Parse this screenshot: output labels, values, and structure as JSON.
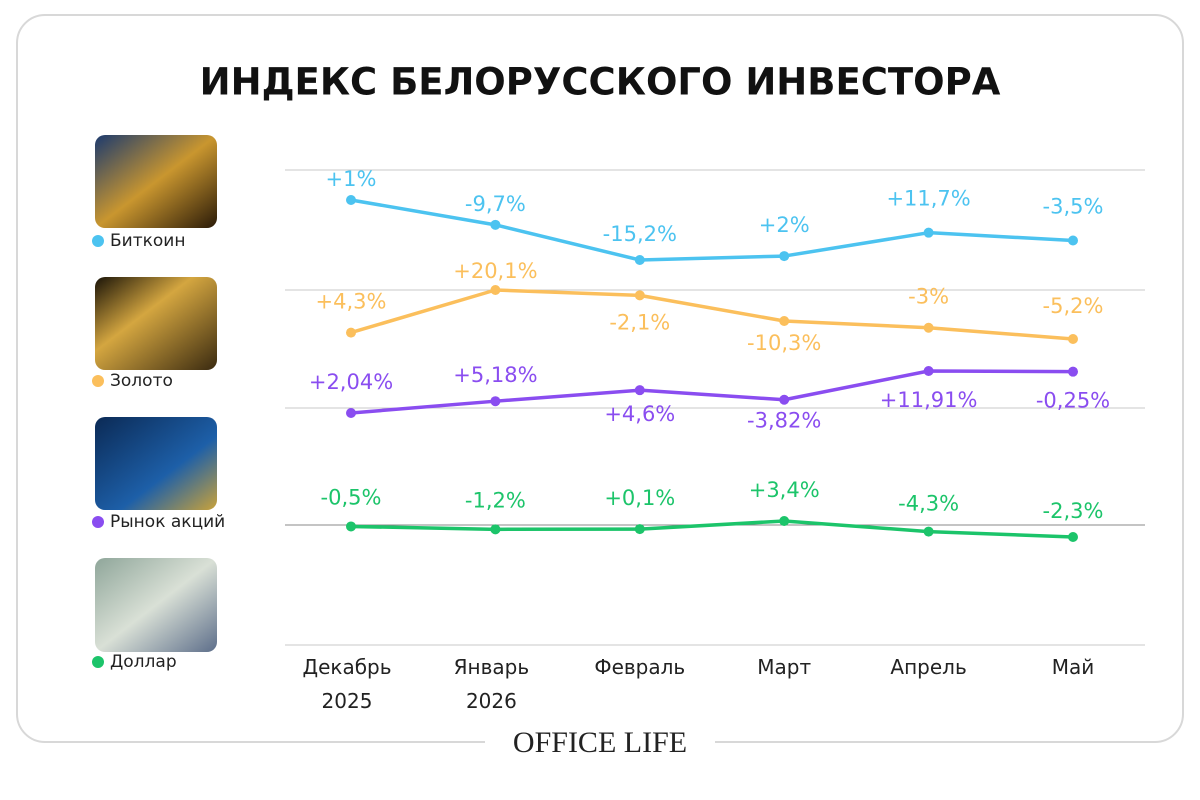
{
  "chart_data": {
    "type": "line",
    "title": "ИНДЕКС БЕЛОРУССКОГО ИНВЕСТОРА",
    "categories": [
      "Декабрь 2025",
      "Январь 2026",
      "Февраль",
      "Март",
      "Апрель",
      "Май"
    ],
    "series": [
      {
        "name": "Биткоин",
        "color": "#4cc3f0",
        "values": [
          1,
          -9.7,
          -15.2,
          2,
          11.7,
          -3.5
        ],
        "value_labels": [
          "+1%",
          "-9,7%",
          "-15,2%",
          "+2%",
          "+11,7%",
          "-3,5%"
        ]
      },
      {
        "name": "Золото",
        "color": "#fbbf5c",
        "values": [
          4.3,
          20.1,
          -2.1,
          -10.3,
          -3,
          -5.2
        ],
        "value_labels": [
          "+4,3%",
          "+20,1%",
          "-2,1%",
          "-10,3%",
          "-3%",
          "-5,2%"
        ]
      },
      {
        "name": "Рынок акций",
        "color": "#8a4df0",
        "values": [
          2.04,
          5.18,
          4.6,
          -3.82,
          11.91,
          -0.25
        ],
        "value_labels": [
          "+2,04%",
          "+5,18%",
          "+4,6%",
          "-3,82%",
          "+11,91%",
          "-0,25%"
        ]
      },
      {
        "name": "Доллар",
        "color": "#1cc46a",
        "values": [
          -0.5,
          -1.2,
          0.1,
          3.4,
          -4.3,
          -2.3
        ],
        "value_labels": [
          "-0,5%",
          "-1,2%",
          "+0,1%",
          "+3,4%",
          "-4,3%",
          "-2,3%"
        ]
      }
    ],
    "footer": "OFFICE LIFE"
  }
}
